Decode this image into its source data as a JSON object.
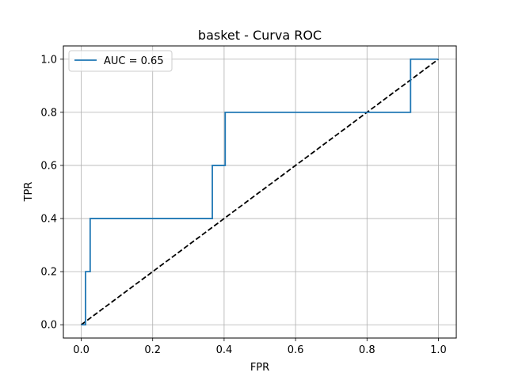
{
  "chart_data": {
    "type": "line",
    "title": "basket - Curva ROC",
    "xlabel": "FPR",
    "ylabel": "TPR",
    "xlim": [
      -0.05,
      1.05
    ],
    "ylim": [
      -0.05,
      1.05
    ],
    "xticks": [
      0.0,
      0.2,
      0.4,
      0.6,
      0.8,
      1.0
    ],
    "yticks": [
      0.0,
      0.2,
      0.4,
      0.6,
      0.8,
      1.0
    ],
    "xtick_labels": [
      "0.0",
      "0.2",
      "0.4",
      "0.6",
      "0.8",
      "1.0"
    ],
    "ytick_labels": [
      "0.0",
      "0.2",
      "0.4",
      "0.6",
      "0.8",
      "1.0"
    ],
    "grid": true,
    "legend_position": "upper-left",
    "series": [
      {
        "name": "AUC = 0.65",
        "color": "#1f77b4",
        "style": "solid",
        "x": [
          0.0,
          0.012,
          0.012,
          0.025,
          0.025,
          0.367,
          0.367,
          0.403,
          0.403,
          0.922,
          0.922,
          1.0
        ],
        "y": [
          0.0,
          0.0,
          0.2,
          0.2,
          0.4,
          0.4,
          0.6,
          0.6,
          0.8,
          0.8,
          1.0,
          1.0
        ]
      },
      {
        "color": "#000000",
        "style": "dashed",
        "x": [
          0.0,
          1.0
        ],
        "y": [
          0.0,
          1.0
        ]
      }
    ]
  }
}
